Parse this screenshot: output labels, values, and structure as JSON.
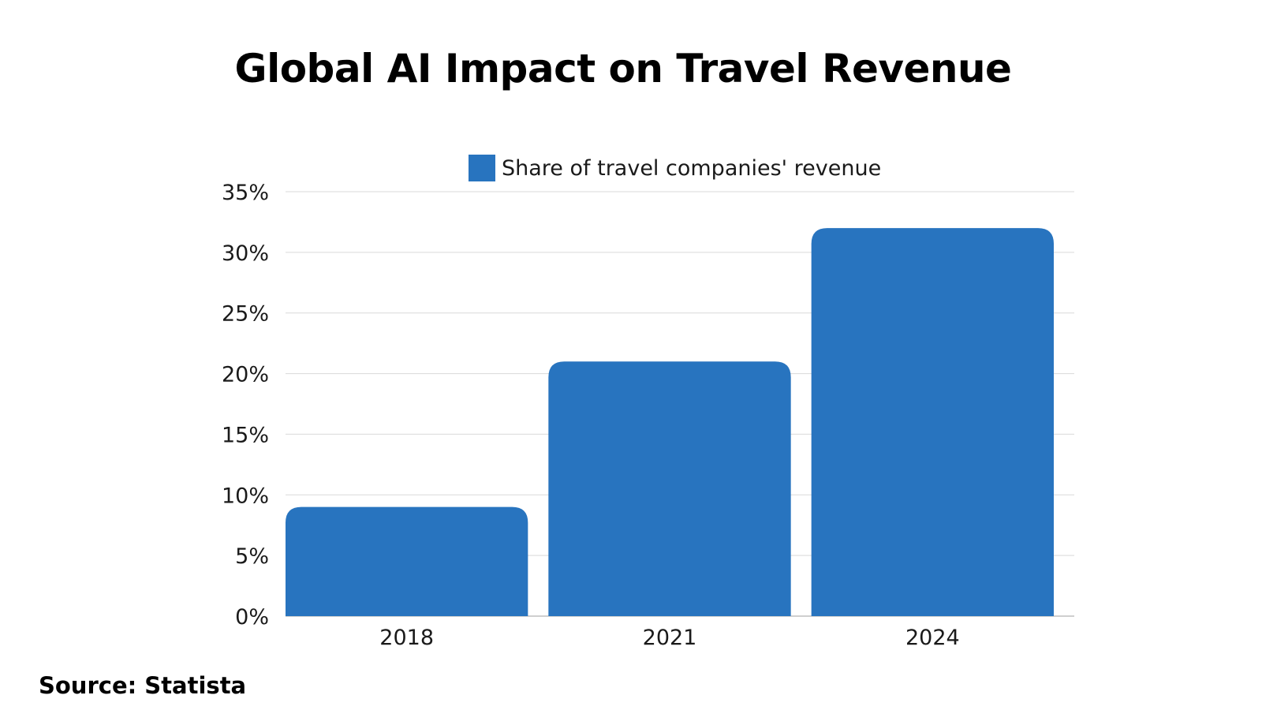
{
  "title": "Global AI Impact on Travel Revenue",
  "source": "Source: Statista",
  "colors": {
    "bar": "#2874bf",
    "grid": "#d9d9d9",
    "axis": "#bfbfbf"
  },
  "chart_data": {
    "type": "bar",
    "title": "Global AI Impact on Travel Revenue",
    "categories": [
      "2018",
      "2021",
      "2024"
    ],
    "series": [
      {
        "name": "Share of travel companies' revenue",
        "values": [
          9,
          21,
          32
        ]
      }
    ],
    "ylim": [
      0,
      35
    ],
    "yticks": [
      0,
      5,
      10,
      15,
      20,
      25,
      30,
      35
    ],
    "ytick_labels": [
      "0%",
      "5%",
      "10%",
      "15%",
      "20%",
      "25%",
      "30%",
      "35%"
    ],
    "grid": true,
    "legend_position": "top-center",
    "xlabel": "",
    "ylabel": ""
  }
}
